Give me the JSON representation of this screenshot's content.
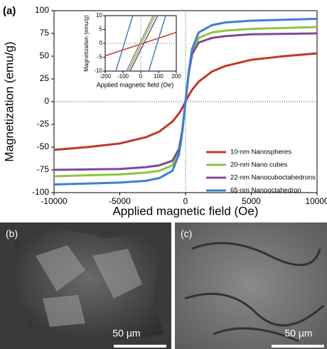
{
  "chart_data": {
    "type": "line",
    "panel_label": "(a)",
    "x_label": "Applied magnetic field (Oe)",
    "y_label": "Magnetization (emu/g)",
    "x": [
      -10000,
      -7500,
      -5000,
      -3000,
      -2000,
      -1000,
      -500,
      -250,
      0,
      250,
      500,
      1000,
      2000,
      3000,
      5000,
      7500,
      10000
    ],
    "series": [
      {
        "name": "10-nm Nanospheres",
        "color": "#c0392b",
        "values": [
          -53,
          -50,
          -46,
          -39,
          -33,
          -22,
          -13,
          -7,
          0,
          7,
          13,
          22,
          33,
          39,
          46,
          50,
          53
        ]
      },
      {
        "name": "20-nm Nano cubes",
        "color": "#8dc63f",
        "values": [
          -82,
          -81,
          -80,
          -78,
          -76,
          -70,
          -55,
          -33,
          0,
          33,
          55,
          70,
          76,
          78,
          80,
          81,
          82
        ]
      },
      {
        "name": "22-nm Nanocuboctahedrons",
        "color": "#7d4a9b",
        "values": [
          -75,
          -74.5,
          -74,
          -72,
          -70,
          -65,
          -52,
          -32,
          0,
          32,
          52,
          65,
          70,
          72,
          74,
          74.5,
          75
        ]
      },
      {
        "name": "65-nm Nanooctahedron",
        "color": "#3f7fd0",
        "values": [
          -91,
          -90,
          -89,
          -87,
          -84,
          -76,
          -58,
          -34,
          0,
          34,
          58,
          76,
          84,
          87,
          89,
          90,
          91
        ]
      }
    ],
    "xlim": [
      -10000,
      10000
    ],
    "ylim": [
      -100,
      100
    ],
    "xticks": [
      -10000,
      -5000,
      0,
      5000,
      10000
    ],
    "yticks": [
      -100,
      -75,
      -50,
      -25,
      0,
      25,
      50,
      75,
      100
    ],
    "zero_lines": true,
    "legend": "lower right",
    "inset": {
      "type": "line",
      "x_label": "Applied magnetic field (Oe)",
      "y_label": "Magnetization (emu/g)",
      "xlim": [
        -200,
        200
      ],
      "ylim": [
        -10,
        10
      ],
      "xticks": [
        -200,
        -100,
        0,
        100,
        200
      ],
      "yticks": [
        -10,
        -5,
        0,
        5,
        10
      ],
      "lines": [
        {
          "color": "#c0392b",
          "x": [
            -200,
            200
          ],
          "values": [
            -4.5,
            4
          ]
        },
        {
          "color": "#3f7fd0",
          "x": [
            -140,
            -45
          ],
          "values": [
            -10,
            10
          ]
        },
        {
          "color": "#3f7fd0",
          "x": [
            45,
            140
          ],
          "values": [
            -10,
            10
          ]
        },
        {
          "color": "#8a8a8a",
          "x": [
            -80,
            70
          ],
          "values": [
            -10,
            10
          ]
        },
        {
          "color": "#8dc63f",
          "x": [
            -70,
            80
          ],
          "values": [
            -10,
            10
          ]
        },
        {
          "color": "#7d4a9b",
          "x": [
            -60,
            95
          ],
          "values": [
            -10,
            10
          ]
        }
      ]
    }
  },
  "panels": [
    {
      "label": "(b)",
      "scale": "50 µm"
    },
    {
      "label": "(c)",
      "scale": "50 µm"
    }
  ]
}
